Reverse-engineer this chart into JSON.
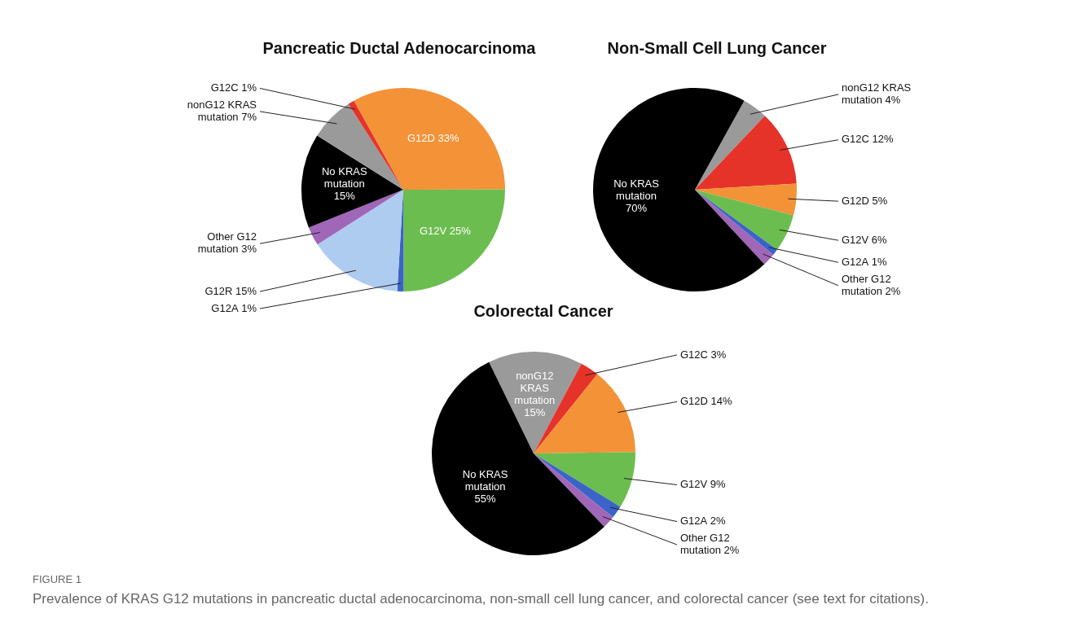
{
  "chart_data": [
    {
      "type": "pie",
      "title": "Pancreatic Ductal Adenocarcinoma",
      "categories": [
        "G12D",
        "G12V",
        "G12A",
        "G12R",
        "Other G12 mutation",
        "No KRAS mutation",
        "nonG12 KRAS mutation",
        "G12C"
      ],
      "values": [
        33,
        25,
        1,
        15,
        3,
        15,
        7,
        1
      ],
      "value_labels": [
        "33%",
        "25%",
        "1%",
        "15%",
        "3%",
        "15%",
        "7%",
        "1%"
      ],
      "colors": [
        "#f39237",
        "#6cbd4f",
        "#3a64c8",
        "#aecbf0",
        "#a066b8",
        "#000000",
        "#9a9a9a",
        "#e5332a"
      ]
    },
    {
      "type": "pie",
      "title": "Non-Small Cell Lung Cancer",
      "categories": [
        "nonG12 KRAS mutation",
        "G12C",
        "G12D",
        "G12V",
        "G12A",
        "Other G12 mutation",
        "No KRAS mutation"
      ],
      "values": [
        4,
        12,
        5,
        6,
        1,
        2,
        70
      ],
      "value_labels": [
        "4%",
        "12%",
        "5%",
        "6%",
        "1%",
        "2%",
        "70%"
      ],
      "colors": [
        "#9a9a9a",
        "#e5332a",
        "#f39237",
        "#6cbd4f",
        "#3a64c8",
        "#a066b8",
        "#000000"
      ]
    },
    {
      "type": "pie",
      "title": "Colorectal Cancer",
      "categories": [
        "nonG12 KRAS mutation",
        "G12C",
        "G12D",
        "G12V",
        "G12A",
        "Other G12 mutation",
        "No KRAS mutation"
      ],
      "values": [
        15,
        3,
        14,
        9,
        2,
        2,
        55
      ],
      "value_labels": [
        "15%",
        "3%",
        "14%",
        "9%",
        "2%",
        "2%",
        "55%"
      ],
      "colors": [
        "#9a9a9a",
        "#e5332a",
        "#f39237",
        "#6cbd4f",
        "#3a64c8",
        "#a066b8",
        "#000000"
      ],
      "annotations": [
        "FIGURE 1",
        "Prevalence of KRAS G12 mutations in pancreatic ductal adenocarcinoma, non-small cell lung cancer, and colorectal cancer (see text for citations)."
      ]
    }
  ]
}
